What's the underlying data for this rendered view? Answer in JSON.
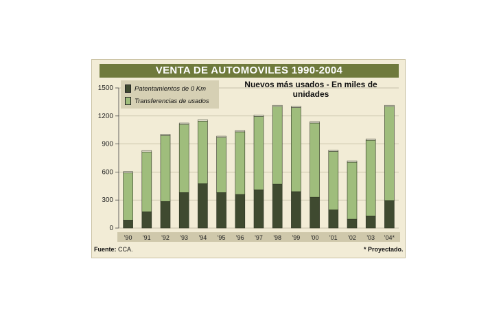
{
  "chart_data": {
    "type": "bar",
    "stacked": true,
    "title": "VENTA DE AUTOMOVILES 1990-2004",
    "subtitle": "Nuevos más usados - En miles de unidades",
    "categories": [
      "'90",
      "'91",
      "'92",
      "'93",
      "'94",
      "'95",
      "'96",
      "'97",
      "'98",
      "'99",
      "'00",
      "'01",
      "'02",
      "'03",
      "'04*"
    ],
    "series": [
      {
        "name": "Patentamientos de 0 Km",
        "color": "#3f4a30",
        "values": [
          85,
          175,
          285,
          380,
          475,
          380,
          360,
          410,
          470,
          390,
          330,
          195,
          95,
          130,
          295
        ]
      },
      {
        "name": "Transferencias de usados",
        "color": "#9fbd7c",
        "values": [
          505,
          640,
          705,
          730,
          670,
          590,
          670,
          785,
          830,
          900,
          795,
          625,
          610,
          810,
          1005
        ]
      }
    ],
    "ylim": [
      0,
      1500
    ],
    "yticks": [
      0,
      300,
      600,
      900,
      1200,
      1500
    ],
    "grid": true,
    "legend_position": "top-left"
  },
  "legend": {
    "item1": "Patentamientos de 0 Km",
    "item2": "Transferencias de usados"
  },
  "footer": {
    "source_label": "Fuente:",
    "source_value": "CCA.",
    "note": "* Proyectado."
  }
}
